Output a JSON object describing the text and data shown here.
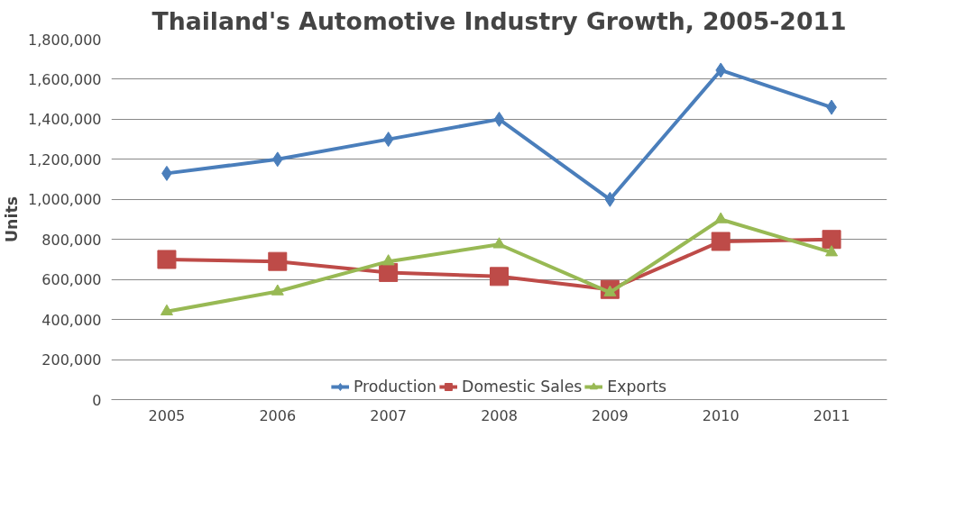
{
  "chart_data": {
    "type": "line",
    "title": "Thailand's Automotive Industry Growth, 2005-2011",
    "ylabel": "Units",
    "categories": [
      "2005",
      "2006",
      "2007",
      "2008",
      "2009",
      "2010",
      "2011"
    ],
    "series": [
      {
        "name": "Production",
        "color": "#4a7ebb",
        "marker": "diamond",
        "values": [
          1130000,
          1200000,
          1300000,
          1400000,
          1000000,
          1645000,
          1460000
        ]
      },
      {
        "name": "Domestic Sales",
        "color": "#be4b48",
        "marker": "square",
        "values": [
          700000,
          690000,
          635000,
          615000,
          550000,
          790000,
          800000
        ]
      },
      {
        "name": "Exports",
        "color": "#98b954",
        "marker": "triangle",
        "values": [
          440000,
          540000,
          690000,
          775000,
          535000,
          900000,
          735000
        ]
      }
    ],
    "ylim": [
      0,
      1800000
    ],
    "yticks": [
      {
        "value": 0,
        "label": "0"
      },
      {
        "value": 200000,
        "label": "200,000"
      },
      {
        "value": 400000,
        "label": "400,000"
      },
      {
        "value": 600000,
        "label": "600,000"
      },
      {
        "value": 800000,
        "label": "800,000"
      },
      {
        "value": 1000000,
        "label": "1,000,000"
      },
      {
        "value": 1200000,
        "label": "1,200,000"
      },
      {
        "value": 1400000,
        "label": "1,400,000"
      },
      {
        "value": 1600000,
        "label": "1,600,000"
      },
      {
        "value": 1800000,
        "label": "1,800,000"
      }
    ],
    "grid": "y",
    "legend": "bottom",
    "line_style": "solid"
  }
}
